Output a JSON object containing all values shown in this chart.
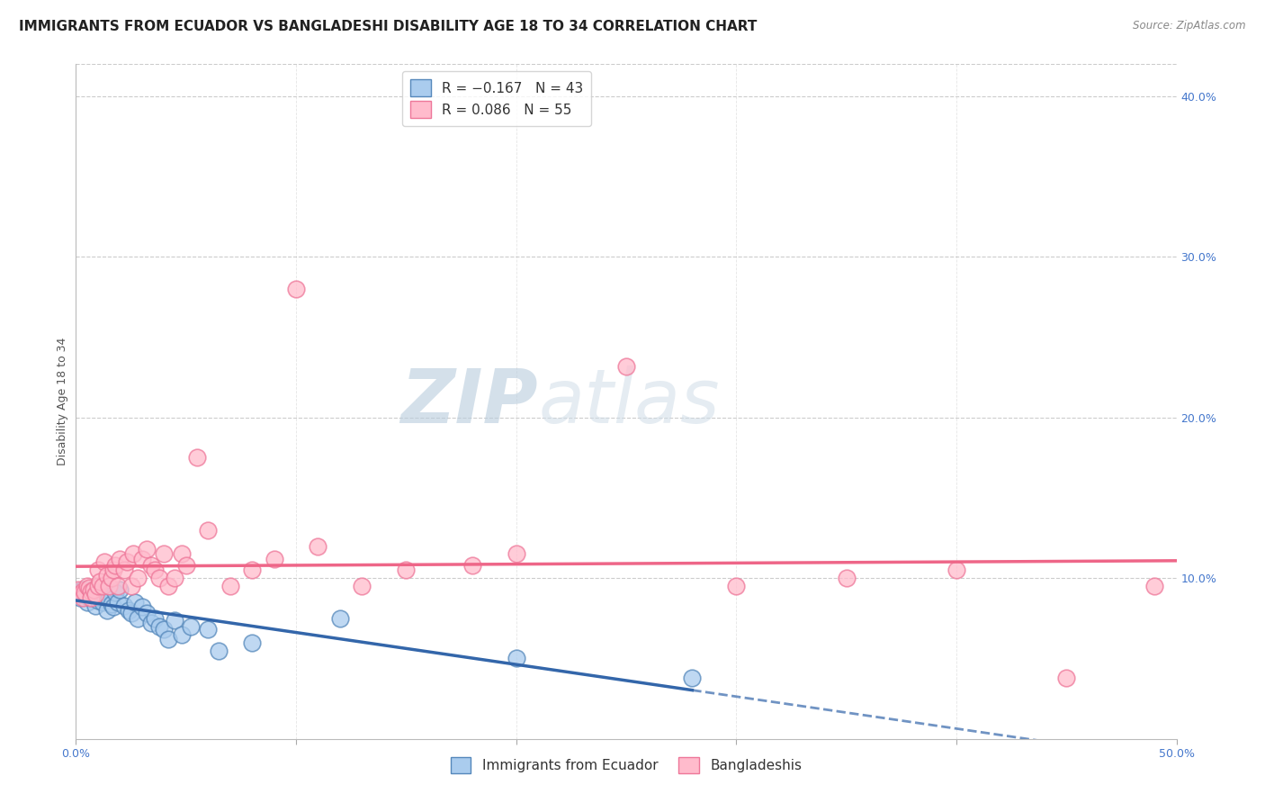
{
  "title": "IMMIGRANTS FROM ECUADOR VS BANGLADESHI DISABILITY AGE 18 TO 34 CORRELATION CHART",
  "source": "Source: ZipAtlas.com",
  "ylabel": "Disability Age 18 to 34",
  "xlim": [
    0.0,
    0.5
  ],
  "ylim": [
    0.0,
    0.42
  ],
  "xticks": [
    0.0,
    0.1,
    0.2,
    0.3,
    0.4,
    0.5
  ],
  "xtick_labels": [
    "0.0%",
    "",
    "",
    "",
    "",
    "50.0%"
  ],
  "right_yticks": [
    0.1,
    0.2,
    0.3,
    0.4
  ],
  "right_ytick_labels": [
    "10.0%",
    "20.0%",
    "30.0%",
    "40.0%"
  ],
  "ecuador_color": "#aaccee",
  "ecuador_edge": "#5588bb",
  "ecuador_line_color": "#3366aa",
  "bangladesh_color": "#ffbbcc",
  "bangladesh_edge": "#ee7799",
  "bangladesh_line_color": "#ee6688",
  "ecuador_R": -0.167,
  "ecuador_N": 43,
  "bangladesh_R": 0.086,
  "bangladesh_N": 55,
  "watermark_zip": "ZIP",
  "watermark_atlas": "atlas",
  "bottom_legend_1": "Immigrants from Ecuador",
  "bottom_legend_2": "Bangladeshis",
  "ecuador_x": [
    0.001,
    0.002,
    0.003,
    0.004,
    0.005,
    0.006,
    0.006,
    0.007,
    0.008,
    0.009,
    0.01,
    0.01,
    0.011,
    0.012,
    0.013,
    0.014,
    0.015,
    0.016,
    0.017,
    0.018,
    0.019,
    0.02,
    0.022,
    0.024,
    0.025,
    0.027,
    0.028,
    0.03,
    0.032,
    0.034,
    0.036,
    0.038,
    0.04,
    0.042,
    0.045,
    0.048,
    0.052,
    0.06,
    0.065,
    0.08,
    0.12,
    0.2,
    0.28
  ],
  "ecuador_y": [
    0.092,
    0.088,
    0.093,
    0.09,
    0.085,
    0.091,
    0.088,
    0.093,
    0.087,
    0.083,
    0.091,
    0.086,
    0.088,
    0.085,
    0.089,
    0.08,
    0.087,
    0.084,
    0.082,
    0.091,
    0.085,
    0.093,
    0.083,
    0.08,
    0.078,
    0.085,
    0.075,
    0.082,
    0.078,
    0.072,
    0.075,
    0.07,
    0.068,
    0.062,
    0.074,
    0.065,
    0.07,
    0.068,
    0.055,
    0.06,
    0.075,
    0.05,
    0.038
  ],
  "bangladesh_x": [
    0.001,
    0.002,
    0.003,
    0.003,
    0.004,
    0.005,
    0.006,
    0.007,
    0.007,
    0.008,
    0.009,
    0.01,
    0.01,
    0.011,
    0.012,
    0.013,
    0.014,
    0.015,
    0.016,
    0.017,
    0.018,
    0.019,
    0.02,
    0.022,
    0.023,
    0.025,
    0.026,
    0.028,
    0.03,
    0.032,
    0.034,
    0.036,
    0.038,
    0.04,
    0.042,
    0.045,
    0.048,
    0.05,
    0.055,
    0.06,
    0.07,
    0.08,
    0.09,
    0.1,
    0.11,
    0.13,
    0.15,
    0.18,
    0.2,
    0.25,
    0.3,
    0.35,
    0.4,
    0.45,
    0.49
  ],
  "bangladesh_y": [
    0.093,
    0.09,
    0.092,
    0.088,
    0.091,
    0.095,
    0.094,
    0.092,
    0.088,
    0.093,
    0.09,
    0.095,
    0.105,
    0.098,
    0.095,
    0.11,
    0.102,
    0.095,
    0.1,
    0.105,
    0.108,
    0.095,
    0.112,
    0.105,
    0.11,
    0.095,
    0.115,
    0.1,
    0.112,
    0.118,
    0.108,
    0.105,
    0.1,
    0.115,
    0.095,
    0.1,
    0.115,
    0.108,
    0.175,
    0.13,
    0.095,
    0.105,
    0.112,
    0.28,
    0.12,
    0.095,
    0.105,
    0.108,
    0.115,
    0.232,
    0.095,
    0.1,
    0.105,
    0.038,
    0.095
  ],
  "grid_color": "#cccccc",
  "background_color": "#ffffff",
  "title_fontsize": 11,
  "axis_label_fontsize": 9,
  "tick_fontsize": 9
}
